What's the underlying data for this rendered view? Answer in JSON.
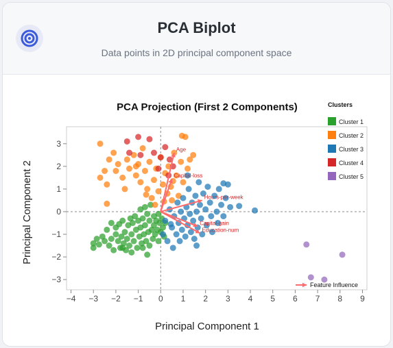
{
  "header": {
    "icon": "target-icon",
    "title": "PCA Biplot",
    "subtitle": "Data points in 2D principal component space"
  },
  "chart_data": {
    "type": "scatter",
    "title": "PCA Projection (First 2 Components)",
    "xlabel": "Principal Component 1",
    "ylabel": "Principal Component 2",
    "xlim": [
      -4.2,
      9.2
    ],
    "ylim": [
      -3.45,
      3.75
    ],
    "xticks": [
      -4,
      -3,
      -2,
      -1,
      0,
      1,
      2,
      3,
      4,
      5,
      6,
      7,
      8,
      9
    ],
    "yticks": [
      -3,
      -2,
      -1,
      0,
      1,
      2,
      3
    ],
    "reference_lines": {
      "x": 0,
      "y": 0,
      "style": "dashed"
    },
    "legend": {
      "title": "Clusters",
      "placement": "right"
    },
    "series": [
      {
        "name": "Cluster 1",
        "color": "#2ca02c",
        "points": [
          [
            -3.0,
            -1.6
          ],
          [
            -3.0,
            -1.4
          ],
          [
            -2.85,
            -1.2
          ],
          [
            -2.75,
            -1.45
          ],
          [
            -2.6,
            -1.1
          ],
          [
            -2.5,
            -1.3
          ],
          [
            -2.4,
            -0.8
          ],
          [
            -2.3,
            -1.5
          ],
          [
            -2.2,
            -1.2
          ],
          [
            -2.1,
            -1.7
          ],
          [
            -2.0,
            -1.0
          ],
          [
            -1.9,
            -1.3
          ],
          [
            -1.85,
            -0.55
          ],
          [
            -1.8,
            -1.6
          ],
          [
            -1.75,
            -1.1
          ],
          [
            -1.7,
            -0.4
          ],
          [
            -1.65,
            -1.4
          ],
          [
            -1.6,
            -0.9
          ],
          [
            -1.55,
            -1.7
          ],
          [
            -1.5,
            -1.2
          ],
          [
            -1.45,
            -0.6
          ],
          [
            -1.4,
            -1.5
          ],
          [
            -1.35,
            -0.3
          ],
          [
            -1.3,
            -1.0
          ],
          [
            -1.25,
            -0.5
          ],
          [
            -1.2,
            -1.3
          ],
          [
            -1.15,
            -0.2
          ],
          [
            -1.1,
            -0.8
          ],
          [
            -1.05,
            -1.6
          ],
          [
            -1.0,
            -0.4
          ],
          [
            -0.95,
            -1.1
          ],
          [
            -0.9,
            0.1
          ],
          [
            -0.9,
            -0.7
          ],
          [
            -0.85,
            -1.4
          ],
          [
            -0.8,
            -0.3
          ],
          [
            -0.75,
            -1.0
          ],
          [
            -0.7,
            0.2
          ],
          [
            -0.7,
            -0.6
          ],
          [
            -0.65,
            -1.3
          ],
          [
            -0.6,
            -0.1
          ],
          [
            -0.55,
            -0.9
          ],
          [
            -0.5,
            -1.5
          ],
          [
            -0.5,
            -0.4
          ],
          [
            -0.45,
            0.3
          ],
          [
            -0.4,
            -0.8
          ],
          [
            -0.35,
            -1.2
          ],
          [
            -0.3,
            -0.2
          ],
          [
            -0.3,
            -0.6
          ],
          [
            -0.25,
            -1.0
          ],
          [
            -0.2,
            -0.4
          ],
          [
            -0.15,
            -0.8
          ],
          [
            -0.1,
            -1.3
          ],
          [
            -0.1,
            -0.1
          ],
          [
            -0.05,
            -0.5
          ],
          [
            0.0,
            -0.9
          ],
          [
            0.05,
            -0.3
          ],
          [
            0.1,
            -0.7
          ],
          [
            0.15,
            -1.1
          ],
          [
            0.2,
            -0.5
          ],
          [
            -2.0,
            -0.7
          ],
          [
            -1.3,
            -1.8
          ],
          [
            -0.6,
            -1.9
          ],
          [
            -1.7,
            -1.6
          ],
          [
            -2.2,
            -0.5
          ],
          [
            -0.8,
            -1.6
          ]
        ]
      },
      {
        "name": "Cluster 2",
        "color": "#ff7f0e",
        "points": [
          [
            -2.7,
            3.0
          ],
          [
            -2.5,
            1.8
          ],
          [
            -2.7,
            1.5
          ],
          [
            -2.3,
            2.3
          ],
          [
            -2.1,
            2.6
          ],
          [
            -2.4,
            1.2
          ],
          [
            -2.0,
            1.8
          ],
          [
            -1.9,
            2.1
          ],
          [
            -1.7,
            1.5
          ],
          [
            -1.5,
            2.3
          ],
          [
            -1.6,
            1.0
          ],
          [
            -1.4,
            1.9
          ],
          [
            -1.2,
            2.5
          ],
          [
            -1.1,
            1.6
          ],
          [
            -1.0,
            2.1
          ],
          [
            -0.9,
            1.3
          ],
          [
            -0.8,
            2.8
          ],
          [
            -0.7,
            1.8
          ],
          [
            -0.6,
            1.0
          ],
          [
            -0.5,
            2.2
          ],
          [
            -0.4,
            0.6
          ],
          [
            -0.3,
            1.4
          ],
          [
            -0.2,
            1.9
          ],
          [
            -0.1,
            0.9
          ],
          [
            0.0,
            2.4
          ],
          [
            0.1,
            1.2
          ],
          [
            0.2,
            1.7
          ],
          [
            0.3,
            0.8
          ],
          [
            0.35,
            2.0
          ],
          [
            0.45,
            1.1
          ],
          [
            0.5,
            0.5
          ],
          [
            0.6,
            2.6
          ],
          [
            0.7,
            1.6
          ],
          [
            0.8,
            0.7
          ],
          [
            0.9,
            2.2
          ],
          [
            1.0,
            1.3
          ],
          [
            1.1,
            3.3
          ],
          [
            0.95,
            3.35
          ],
          [
            1.2,
            1.9
          ],
          [
            1.3,
            2.3
          ],
          [
            1.45,
            2.5
          ],
          [
            -2.4,
            0.35
          ],
          [
            -1.1,
            2.0
          ],
          [
            -0.65,
            0.75
          ],
          [
            0.15,
            0.45
          ],
          [
            -0.25,
            0.3
          ],
          [
            0.55,
            1.35
          ]
        ]
      },
      {
        "name": "Cluster 3",
        "color": "#1f77b4",
        "points": [
          [
            0.1,
            -1.0
          ],
          [
            0.2,
            -0.4
          ],
          [
            0.3,
            -1.3
          ],
          [
            0.4,
            0.1
          ],
          [
            0.5,
            -0.7
          ],
          [
            0.55,
            -1.6
          ],
          [
            0.6,
            -0.2
          ],
          [
            0.7,
            -1.0
          ],
          [
            0.75,
            0.4
          ],
          [
            0.8,
            -0.5
          ],
          [
            0.85,
            -1.3
          ],
          [
            0.9,
            0.0
          ],
          [
            0.95,
            -0.8
          ],
          [
            1.0,
            0.6
          ],
          [
            1.05,
            -0.3
          ],
          [
            1.1,
            -1.1
          ],
          [
            1.15,
            0.2
          ],
          [
            1.2,
            -0.6
          ],
          [
            1.25,
            1.0
          ],
          [
            1.3,
            -0.1
          ],
          [
            1.35,
            -0.9
          ],
          [
            1.4,
            0.4
          ],
          [
            1.45,
            -0.4
          ],
          [
            1.5,
            -1.2
          ],
          [
            1.55,
            0.7
          ],
          [
            1.6,
            0.0
          ],
          [
            1.65,
            -0.7
          ],
          [
            1.7,
            1.3
          ],
          [
            1.75,
            0.3
          ],
          [
            1.8,
            -0.3
          ],
          [
            1.85,
            -1.0
          ],
          [
            1.9,
            0.8
          ],
          [
            2.0,
            0.1
          ],
          [
            2.05,
            -0.6
          ],
          [
            2.1,
            1.1
          ],
          [
            2.2,
            0.4
          ],
          [
            2.25,
            -0.2
          ],
          [
            2.3,
            -0.9
          ],
          [
            2.4,
            0.7
          ],
          [
            2.5,
            0.0
          ],
          [
            2.55,
            -0.5
          ],
          [
            2.6,
            1.0
          ],
          [
            2.7,
            0.3
          ],
          [
            2.8,
            -0.2
          ],
          [
            2.9,
            0.6
          ],
          [
            3.0,
            1.2
          ],
          [
            3.1,
            0.2
          ],
          [
            3.5,
            0.25
          ],
          [
            4.2,
            0.05
          ],
          [
            2.8,
            1.25
          ],
          [
            1.6,
            -1.5
          ],
          [
            0.45,
            -0.55
          ],
          [
            1.2,
            1.6
          ]
        ]
      },
      {
        "name": "Cluster 4",
        "color": "#d62728",
        "points": [
          [
            -1.5,
            3.1
          ],
          [
            -1.0,
            3.3
          ],
          [
            -0.5,
            3.2
          ],
          [
            -0.3,
            2.6
          ],
          [
            0.0,
            2.4
          ],
          [
            0.2,
            2.85
          ],
          [
            0.4,
            2.3
          ],
          [
            -0.9,
            2.5
          ],
          [
            -0.1,
            1.9
          ],
          [
            0.55,
            2.0
          ],
          [
            -1.4,
            2.6
          ],
          [
            0.35,
            1.6
          ]
        ]
      },
      {
        "name": "Cluster 5",
        "color": "#9467bd",
        "points": [
          [
            6.5,
            -1.45
          ],
          [
            8.1,
            -1.9
          ],
          [
            6.7,
            -2.9
          ],
          [
            7.3,
            -3.0
          ]
        ]
      }
    ],
    "loadings": [
      {
        "label": "Age",
        "x": 0.6,
        "y": 2.6
      },
      {
        "label": "Capital-loss",
        "x": 0.5,
        "y": 1.45
      },
      {
        "label": "Hours-per-week",
        "x": 1.85,
        "y": 0.5
      },
      {
        "label": "Capital-gain",
        "x": 1.65,
        "y": -0.65
      },
      {
        "label": "Education-num",
        "x": 1.75,
        "y": -0.95
      }
    ],
    "loading_color": "#ff6b6b",
    "loading_label_color": "#d62728",
    "feature_legend_label": "Feature Influence"
  }
}
